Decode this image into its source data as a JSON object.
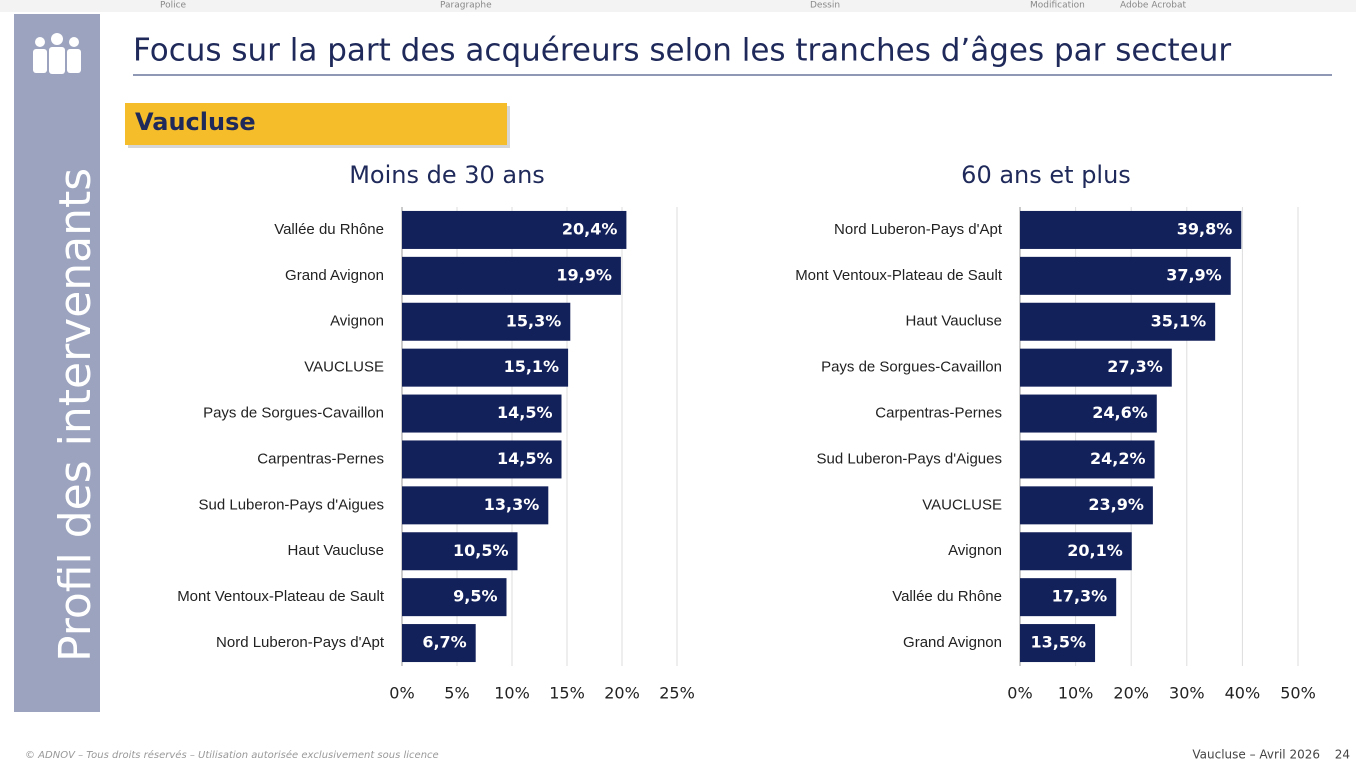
{
  "slide": {
    "ribbon": [
      "Police",
      "Paragraphe",
      "Dessin",
      "Modification",
      "Adobe Acrobat"
    ],
    "sidebar": "Profil des intervenants",
    "title": "Focus sur la part des acquéreurs selon les tranches d’âges par secteur",
    "section": "Vaucluse",
    "footer": "© ADNOV – Tous droits réservés – Utilisation autorisée exclusivement sous licence",
    "page_info": "Vaucluse – Avril 2026",
    "page_number": "24"
  },
  "chart_data": [
    {
      "type": "barh",
      "title": "Moins de 30 ans",
      "color": "#13215a",
      "grid": true,
      "categories": [
        "Vallée du Rhône",
        "Grand Avignon",
        "Avignon",
        "VAUCLUSE",
        "Pays de Sorgues-Cavaillon",
        "Carpentras-Pernes",
        "Sud Luberon-Pays d'Aigues",
        "Haut Vaucluse",
        "Mont Ventoux-Plateau de Sault",
        "Nord Luberon-Pays d'Apt"
      ],
      "values": [
        20.4,
        19.9,
        15.3,
        15.1,
        14.5,
        14.5,
        13.3,
        10.5,
        9.5,
        6.7
      ],
      "value_labels": [
        "20,4%",
        "19,9%",
        "15,3%",
        "15,1%",
        "14,5%",
        "14,5%",
        "13,3%",
        "10,5%",
        "9,5%",
        "6,7%"
      ],
      "xlim": [
        0,
        25
      ],
      "xticks": [
        {
          "value": 0,
          "label": "0%"
        },
        {
          "value": 5,
          "label": "5%"
        },
        {
          "value": 10,
          "label": "10%"
        },
        {
          "value": 15,
          "label": "15%"
        },
        {
          "value": 20,
          "label": "20%"
        },
        {
          "value": 25,
          "label": "25%"
        }
      ]
    },
    {
      "type": "barh",
      "title": "60 ans et plus",
      "color": "#13215a",
      "grid": true,
      "categories": [
        "Nord Luberon-Pays d'Apt",
        "Mont Ventoux-Plateau de Sault",
        "Haut Vaucluse",
        "Pays de Sorgues-Cavaillon",
        "Carpentras-Pernes",
        "Sud Luberon-Pays d'Aigues",
        "VAUCLUSE",
        "Avignon",
        "Vallée du Rhône",
        "Grand Avignon"
      ],
      "values": [
        39.8,
        37.9,
        35.1,
        27.3,
        24.6,
        24.2,
        23.9,
        20.1,
        17.3,
        13.5
      ],
      "value_labels": [
        "39,8%",
        "37,9%",
        "35,1%",
        "27,3%",
        "24,6%",
        "24,2%",
        "23,9%",
        "20,1%",
        "17,3%",
        "13,5%"
      ],
      "xlim": [
        0,
        50
      ],
      "xticks": [
        {
          "value": 0,
          "label": "0%"
        },
        {
          "value": 10,
          "label": "10%"
        },
        {
          "value": 20,
          "label": "20%"
        },
        {
          "value": 30,
          "label": "30%"
        },
        {
          "value": 40,
          "label": "40%"
        },
        {
          "value": 50,
          "label": "50%"
        }
      ]
    }
  ]
}
